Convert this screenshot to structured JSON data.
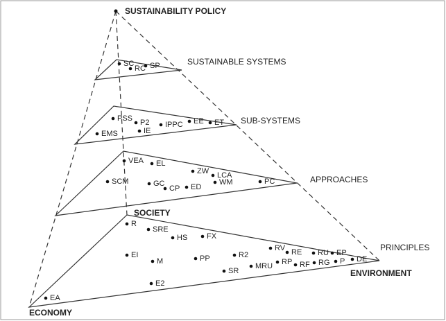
{
  "title": "SUSTAINABILITY POLICY",
  "vertices": {
    "society": "SOCIETY",
    "economy": "ECONOMY",
    "environment": "ENVIRONMENT"
  },
  "layers": [
    {
      "label": "SUSTAINABLE SYSTEMS",
      "nodes": [
        "SC",
        "RC",
        "SP"
      ]
    },
    {
      "label": "SUB-SYSTEMS",
      "nodes": [
        "PSS",
        "P2",
        "IPPC",
        "EE",
        "ET",
        "IE",
        "EMS"
      ]
    },
    {
      "label": "APPROACHES",
      "nodes": [
        "VEA",
        "EL",
        "ZW",
        "LCA",
        "WM",
        "SCM",
        "GC",
        "CP",
        "ED",
        "PC"
      ]
    },
    {
      "label": "PRINCIPLES",
      "nodes": [
        "R",
        "SRE",
        "HS",
        "FX",
        "EI",
        "M",
        "PP",
        "R2",
        "RV",
        "RE",
        "RU",
        "EP",
        "SR",
        "MRU",
        "RP",
        "RF",
        "RG",
        "P",
        "DE",
        "E2",
        "EA"
      ]
    }
  ]
}
